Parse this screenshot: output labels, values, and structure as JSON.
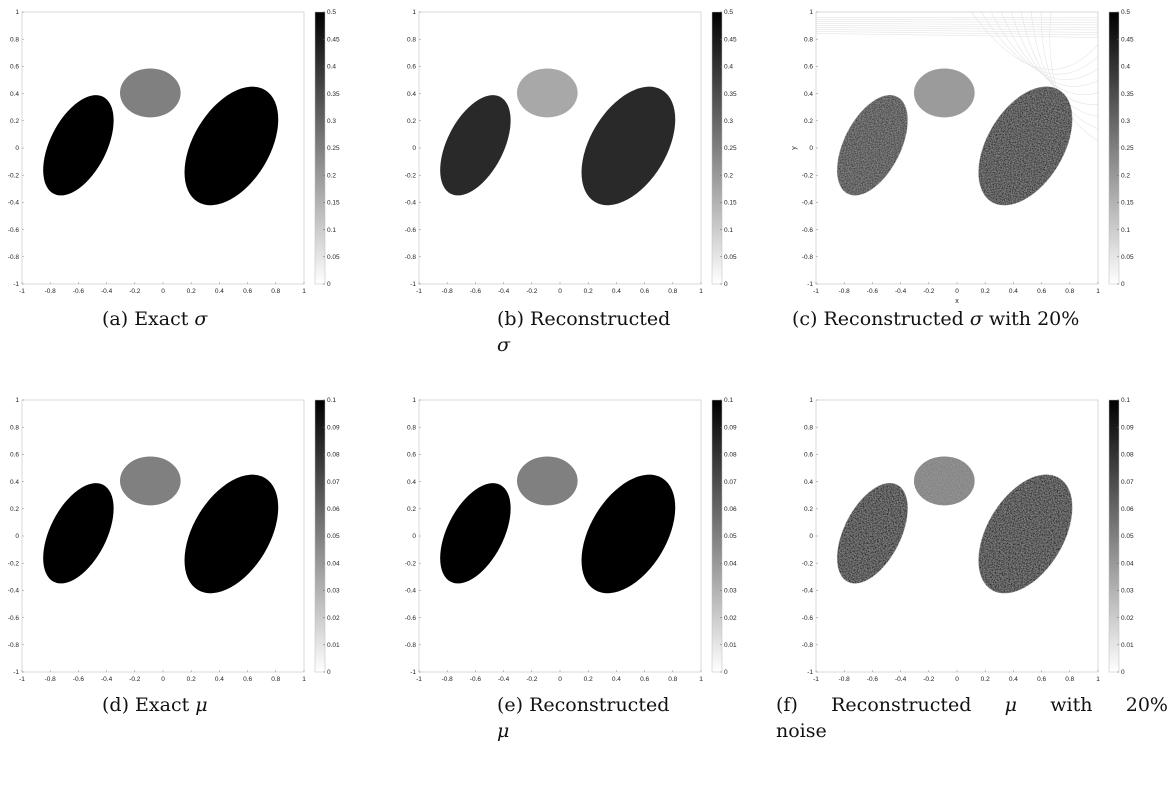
{
  "figure": {
    "panels": [
      {
        "id": "a",
        "caption": {
          "label": "(a) Exact",
          "symbol": "σ",
          "suffix": "",
          "second_line": ""
        },
        "colorbar": {
          "min": 0,
          "max": 0.5,
          "ticks": [
            "0",
            "0.05",
            "0.1",
            "0.15",
            "0.2",
            "0.25",
            "0.3",
            "0.35",
            "0.4",
            "0.45",
            "0.5"
          ]
        },
        "axes": {
          "xlim": [
            -1,
            1
          ],
          "ylim": [
            -1,
            1
          ],
          "xticks": [
            "-1",
            "-0.8",
            "-0.6",
            "-0.4",
            "-0.2",
            "0",
            "0.2",
            "0.4",
            "0.6",
            "0.8",
            "1"
          ],
          "yticks": [
            "-1",
            "-0.8",
            "-0.6",
            "-0.4",
            "-0.2",
            "0",
            "0.2",
            "0.4",
            "0.6",
            "0.8",
            "1"
          ],
          "xlabel": "",
          "ylabel": ""
        },
        "colormap": "gray-reversed",
        "image": {
          "type": "exact",
          "noise": false,
          "shapes": [
            {
              "name": "small-disk",
              "value": 0.25
            },
            {
              "name": "left-ellipse",
              "value": 0.5
            },
            {
              "name": "right-ellipse",
              "value": 0.5
            }
          ]
        }
      },
      {
        "id": "b",
        "caption": {
          "label": "(b) Reconstructed",
          "symbol": "σ",
          "suffix": "",
          "second_line": ""
        },
        "colorbar": {
          "min": 0,
          "max": 0.5,
          "ticks": [
            "0",
            "0.05",
            "0.1",
            "0.15",
            "0.2",
            "0.25",
            "0.3",
            "0.35",
            "0.4",
            "0.45",
            "0.5"
          ]
        },
        "axes": {
          "xlim": [
            -1,
            1
          ],
          "ylim": [
            -1,
            1
          ],
          "xticks": [
            "-1",
            "-0.8",
            "-0.6",
            "-0.4",
            "-0.2",
            "0",
            "0.2",
            "0.4",
            "0.6",
            "0.8",
            "1"
          ],
          "yticks": [
            "-1",
            "-0.8",
            "-0.6",
            "-0.4",
            "-0.2",
            "0",
            "0.2",
            "0.4",
            "0.6",
            "0.8",
            "1"
          ],
          "xlabel": "",
          "ylabel": ""
        },
        "colormap": "gray-reversed",
        "image": {
          "type": "reconstructed",
          "noise": false,
          "shapes": [
            {
              "name": "small-disk",
              "value": 0.17
            },
            {
              "name": "left-ellipse",
              "value": 0.42
            },
            {
              "name": "right-ellipse",
              "value": 0.42
            }
          ]
        }
      },
      {
        "id": "c",
        "caption": {
          "label": "(c) Reconstructed",
          "symbol": "σ",
          "suffix": "with 20%",
          "second_line": ""
        },
        "colorbar": {
          "min": 0,
          "max": 0.5,
          "ticks": [
            "0",
            "0.05",
            "0.1",
            "0.15",
            "0.2",
            "0.25",
            "0.3",
            "0.35",
            "0.4",
            "0.45",
            "0.5"
          ]
        },
        "axes": {
          "xlim": [
            -1,
            1
          ],
          "ylim": [
            -1,
            1
          ],
          "xticks": [
            "-1",
            "-0.8",
            "-0.6",
            "-0.4",
            "-0.2",
            "0",
            "0.2",
            "0.4",
            "0.6",
            "0.8",
            "1"
          ],
          "yticks": [
            "-1",
            "-0.8",
            "-0.6",
            "-0.4",
            "-0.2",
            "0",
            "0.2",
            "0.4",
            "0.6",
            "0.8",
            "1"
          ],
          "xlabel": "x",
          "ylabel": "y"
        },
        "colormap": "gray-reversed",
        "image": {
          "type": "reconstructed",
          "noise": true,
          "shapes": [
            {
              "name": "small-disk",
              "value": 0.2
            },
            {
              "name": "left-ellipse",
              "value": 0.4
            },
            {
              "name": "right-ellipse",
              "value": 0.45
            }
          ]
        }
      },
      {
        "id": "d",
        "caption": {
          "label": "(d) Exact",
          "symbol": "μ",
          "suffix": "",
          "second_line": ""
        },
        "colorbar": {
          "min": 0,
          "max": 0.1,
          "ticks": [
            "0",
            "0.01",
            "0.02",
            "0.03",
            "0.04",
            "0.05",
            "0.06",
            "0.07",
            "0.08",
            "0.09",
            "0.1"
          ]
        },
        "axes": {
          "xlim": [
            -1,
            1
          ],
          "ylim": [
            -1,
            1
          ],
          "xticks": [
            "-1",
            "-0.8",
            "-0.6",
            "-0.4",
            "-0.2",
            "0",
            "0.2",
            "0.4",
            "0.6",
            "0.8",
            "1"
          ],
          "yticks": [
            "-1",
            "-0.8",
            "-0.6",
            "-0.4",
            "-0.2",
            "0",
            "0.2",
            "0.4",
            "0.6",
            "0.8",
            "1"
          ],
          "xlabel": "",
          "ylabel": ""
        },
        "colormap": "gray-reversed",
        "image": {
          "type": "exact",
          "noise": false,
          "shapes": [
            {
              "name": "small-disk",
              "value": 0.05
            },
            {
              "name": "left-ellipse",
              "value": 0.1
            },
            {
              "name": "right-ellipse",
              "value": 0.1
            }
          ]
        }
      },
      {
        "id": "e",
        "caption": {
          "label": "(e) Reconstructed",
          "symbol": "μ",
          "suffix": "",
          "second_line": ""
        },
        "colorbar": {
          "min": 0,
          "max": 0.1,
          "ticks": [
            "0",
            "0.01",
            "0.02",
            "0.03",
            "0.04",
            "0.05",
            "0.06",
            "0.07",
            "0.08",
            "0.09",
            "0.1"
          ]
        },
        "axes": {
          "xlim": [
            -1,
            1
          ],
          "ylim": [
            -1,
            1
          ],
          "xticks": [
            "-1",
            "-0.8",
            "-0.6",
            "-0.4",
            "-0.2",
            "0",
            "0.2",
            "0.4",
            "0.6",
            "0.8",
            "1"
          ],
          "yticks": [
            "-1",
            "-0.8",
            "-0.6",
            "-0.4",
            "-0.2",
            "0",
            "0.2",
            "0.4",
            "0.6",
            "0.8",
            "1"
          ],
          "xlabel": "",
          "ylabel": ""
        },
        "colormap": "gray-reversed",
        "image": {
          "type": "reconstructed",
          "noise": false,
          "shapes": [
            {
              "name": "small-disk",
              "value": 0.05
            },
            {
              "name": "left-ellipse",
              "value": 0.1
            },
            {
              "name": "right-ellipse",
              "value": 0.1
            }
          ]
        }
      },
      {
        "id": "f",
        "caption": {
          "label": "(f) Reconstructed",
          "symbol": "μ",
          "suffix": "with 20%",
          "second_line": "noise"
        },
        "colorbar": {
          "min": 0,
          "max": 0.1,
          "ticks": [
            "0",
            "0.01",
            "0.02",
            "0.03",
            "0.04",
            "0.05",
            "0.06",
            "0.07",
            "0.08",
            "0.09",
            "0.1"
          ]
        },
        "axes": {
          "xlim": [
            -1,
            1
          ],
          "ylim": [
            -1,
            1
          ],
          "xticks": [
            "-1",
            "-0.8",
            "-0.6",
            "-0.4",
            "-0.2",
            "0",
            "0.2",
            "0.4",
            "0.6",
            "0.8",
            "1"
          ],
          "yticks": [
            "-1",
            "-0.8",
            "-0.6",
            "-0.4",
            "-0.2",
            "0",
            "0.2",
            "0.4",
            "0.6",
            "0.8",
            "1"
          ],
          "xlabel": "",
          "ylabel": ""
        },
        "colormap": "gray-reversed",
        "image": {
          "type": "reconstructed",
          "noise": true,
          "shapes": [
            {
              "name": "small-disk",
              "value": 0.05
            },
            {
              "name": "left-ellipse",
              "value": 0.1
            },
            {
              "name": "right-ellipse",
              "value": 0.1
            }
          ]
        }
      }
    ]
  }
}
